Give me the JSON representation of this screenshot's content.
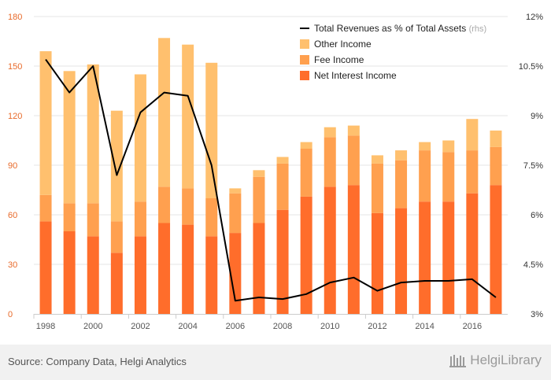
{
  "chart_data": {
    "type": "bar",
    "stacked": true,
    "categories": [
      "1998",
      "1999",
      "2000",
      "2001",
      "2002",
      "2003",
      "2004",
      "2005",
      "2006",
      "2007",
      "2008",
      "2009",
      "2010",
      "2011",
      "2012",
      "2013",
      "2014",
      "2015",
      "2016",
      "2017"
    ],
    "series": [
      {
        "name": "Net Interest Income",
        "color": "#ff6d2b",
        "values": [
          56,
          50,
          47,
          37,
          47,
          55,
          54,
          47,
          49,
          55,
          63,
          71,
          77,
          78,
          61,
          64,
          68,
          68,
          73,
          78
        ]
      },
      {
        "name": "Fee Income",
        "color": "#ffa04f",
        "values": [
          16,
          17,
          20,
          19,
          21,
          22,
          22,
          23,
          24,
          28,
          28,
          29,
          30,
          30,
          30,
          29,
          31,
          30,
          26,
          23
        ]
      },
      {
        "name": "Other Income",
        "color": "#ffc06e",
        "values": [
          87,
          80,
          84,
          67,
          77,
          90,
          87,
          82,
          3,
          4,
          4,
          4,
          6,
          6,
          5,
          6,
          5,
          7,
          19,
          10
        ]
      }
    ],
    "line_series": {
      "name": "Total Revenues as % of Total Assets",
      "legend_suffix": "(rhs)",
      "color": "#000000",
      "axis": "right",
      "values": [
        10.7,
        9.7,
        10.5,
        7.2,
        9.1,
        9.7,
        9.6,
        7.5,
        3.4,
        3.5,
        3.45,
        3.6,
        3.95,
        4.1,
        3.7,
        3.95,
        4.0,
        4.0,
        4.05,
        3.5
      ]
    },
    "y_left": {
      "min": 0,
      "max": 180,
      "ticks": [
        "0",
        "30",
        "60",
        "90",
        "120",
        "150",
        "180"
      ]
    },
    "y_right": {
      "min": 3,
      "max": 12,
      "ticks": [
        "3%",
        "4.5%",
        "6%",
        "7.5%",
        "9%",
        "10.5%",
        "12%"
      ]
    },
    "x_tick_labels": [
      "1998",
      "2000",
      "2002",
      "2004",
      "2006",
      "2008",
      "2010",
      "2012",
      "2014",
      "2016"
    ],
    "legend_order": [
      "Total Revenues as % of Total Assets",
      "Other Income",
      "Fee Income",
      "Net Interest Income"
    ],
    "legend_position": "top-right",
    "grid": true
  },
  "footer": {
    "source": "Source: Company Data, Helgi Analytics",
    "brand": "HelgiLibrary"
  },
  "colors": {
    "left_axis_text": "#e86a2a",
    "right_axis_text": "#333333",
    "grid": "#e6e6e6"
  }
}
